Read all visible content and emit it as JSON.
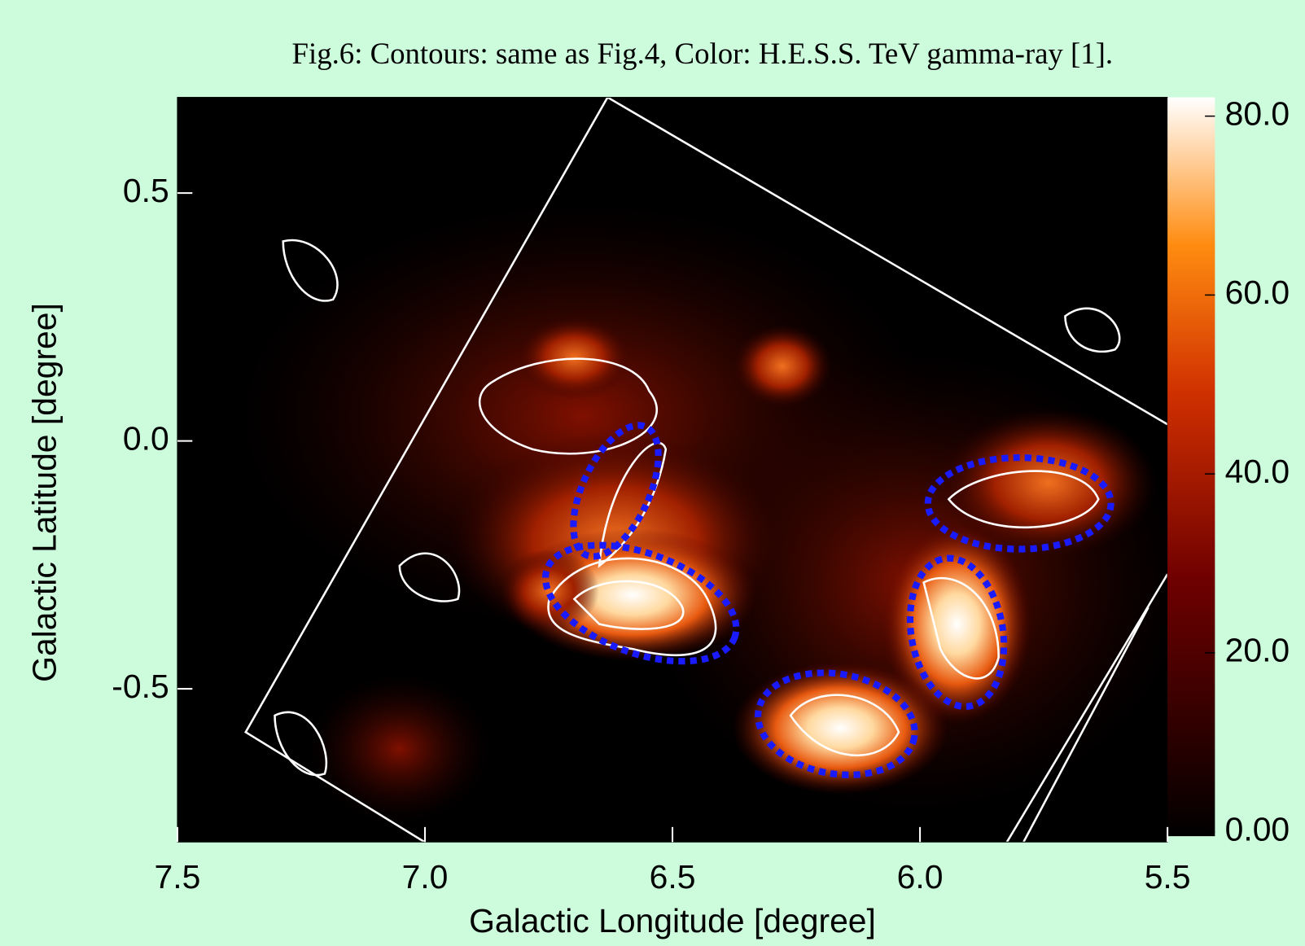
{
  "chart_data": {
    "type": "heatmap",
    "title": "Fig.6: Contours: same as Fig.4, Color: H.E.S.S. TeV gamma-ray [1].",
    "xlabel": "Galactic Longitude [degree]",
    "ylabel": "Galactic Latitude [degree]",
    "xlim": [
      7.5,
      5.5
    ],
    "xticks": [
      7.5,
      {
        "value": 7,
        "label": "7.0"
      },
      6.5,
      {
        "value": 6,
        "label": "6.0"
      },
      5.5
    ],
    "ylim": [
      -0.809,
      0.693
    ],
    "yticks": [
      0.5,
      {
        "value": 0,
        "label": "0.0"
      },
      -0.5
    ],
    "clim": [
      -0.5,
      82.1
    ],
    "cticks": [
      {
        "value": 0,
        "label": "0.00"
      },
      {
        "value": 20,
        "label": "20.0"
      },
      {
        "value": 40,
        "label": "40.0"
      },
      {
        "value": 60,
        "label": "60.0"
      },
      {
        "value": 80,
        "label": "80.0"
      }
    ]
  }
}
